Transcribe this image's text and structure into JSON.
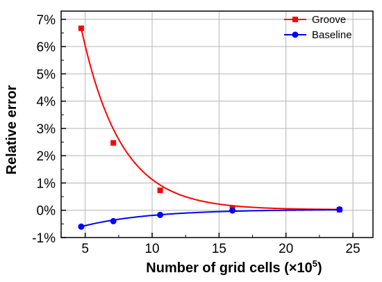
{
  "chart_data": {
    "type": "line",
    "xlabel": "Number of grid cells (×10",
    "xlabel_exponent": "5",
    "xlabel_suffix": ")",
    "ylabel": "Relative error",
    "xlim": [
      3.2,
      26.5
    ],
    "ylim": [
      -1,
      7.3
    ],
    "x_ticks": [
      5,
      10,
      15,
      20,
      25
    ],
    "x_tick_labels": [
      "5",
      "10",
      "15",
      "20",
      "25"
    ],
    "y_ticks": [
      -1,
      0,
      1,
      2,
      3,
      4,
      5,
      6,
      7
    ],
    "y_tick_labels": [
      "-1%",
      "0%",
      "1%",
      "2%",
      "3%",
      "4%",
      "5%",
      "6%",
      "7%"
    ],
    "grid": true,
    "legend_position": "top-right",
    "series": [
      {
        "name": "Groove",
        "color": "#ff0000",
        "marker": "square",
        "x": [
          4.7,
          7.1,
          10.6,
          16.0,
          24.0
        ],
        "y": [
          6.67,
          2.47,
          0.73,
          0.08,
          0.02
        ],
        "fit": {
          "x0": 4.7,
          "y0": 6.67,
          "decay": 0.338
        }
      },
      {
        "name": "Baseline",
        "color": "#0000ff",
        "marker": "circle",
        "x": [
          4.7,
          7.1,
          10.6,
          16.0,
          24.0
        ],
        "y": [
          -0.6,
          -0.4,
          -0.17,
          -0.01,
          0.03
        ],
        "fit": {
          "x0": 4.7,
          "y0": -0.6,
          "decay": 0.2
        }
      }
    ]
  }
}
